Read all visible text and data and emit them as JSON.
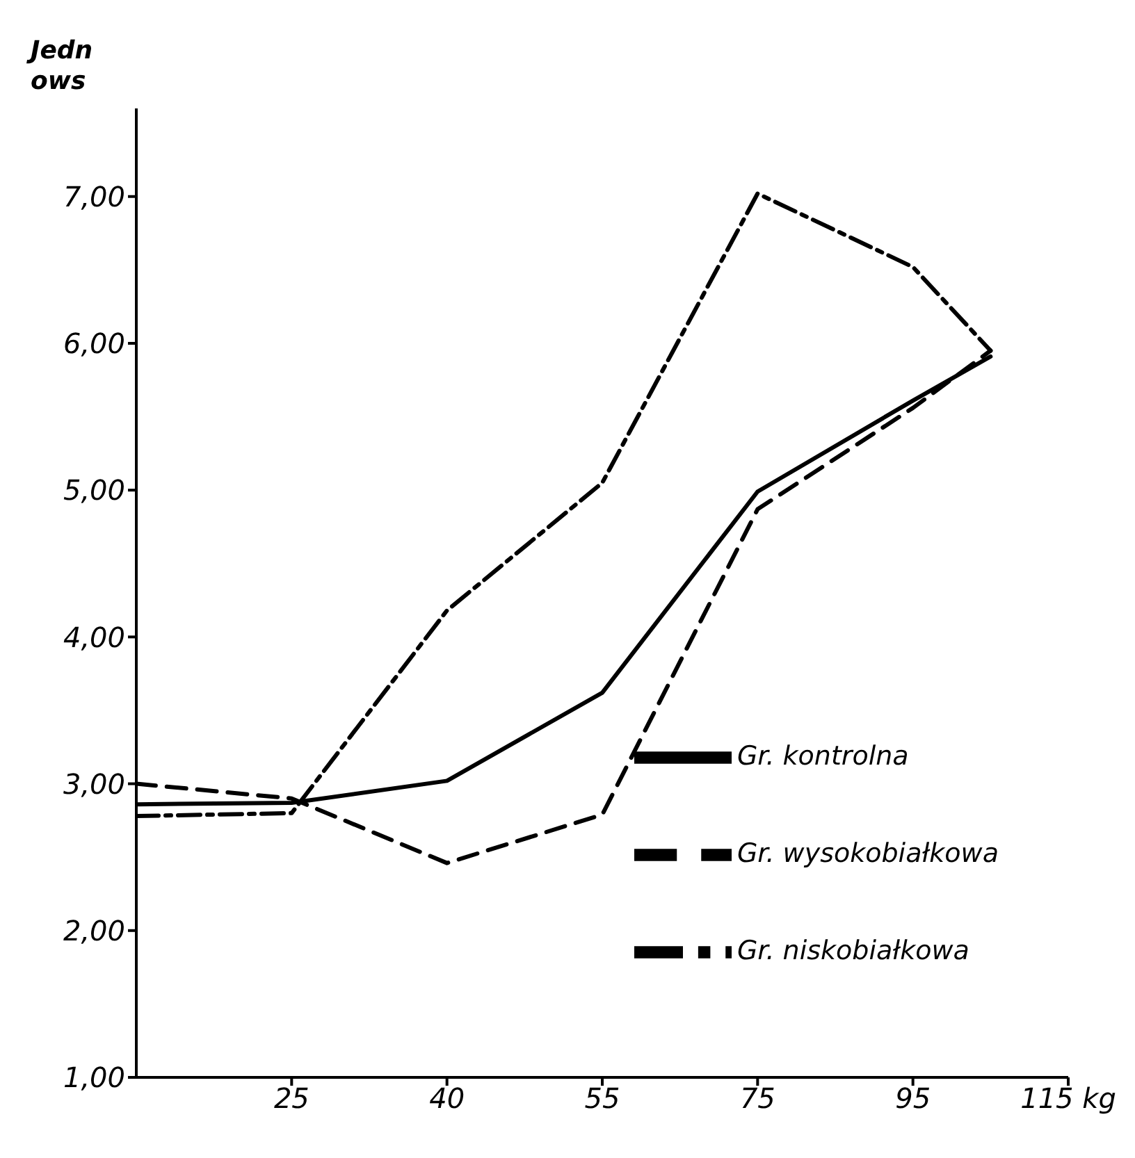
{
  "chart_data": {
    "type": "line",
    "ylabel": "Jedn ows",
    "categories": [
      null,
      null,
      "25",
      null,
      "40",
      null,
      "55",
      null,
      "75",
      null,
      "95",
      null,
      "115 kg"
    ],
    "ylim": [
      1,
      7.6
    ],
    "yticks": [
      {
        "value": 1,
        "label": "1,00"
      },
      {
        "value": 2,
        "label": "2,00"
      },
      {
        "value": 3,
        "label": "3,00"
      },
      {
        "value": 4,
        "label": "4,00"
      },
      {
        "value": 5,
        "label": "5,00"
      },
      {
        "value": 6,
        "label": "6,00"
      },
      {
        "value": 7,
        "label": "7,00"
      }
    ],
    "grid": false,
    "legend": "bottom right",
    "marker": "none",
    "series": [
      {
        "name": "Gr. kontrolna",
        "color": "#000000",
        "line_style": "solid",
        "values": [
          2.86,
          null,
          2.87,
          null,
          3.02,
          null,
          3.62,
          null,
          4.99,
          null,
          5.61,
          5.91,
          null
        ]
      },
      {
        "name": "Gr. wysokobiałkowa",
        "color": "#000000",
        "line_style": "dashed",
        "values": [
          3.0,
          null,
          2.9,
          null,
          2.46,
          null,
          2.79,
          null,
          4.87,
          null,
          5.56,
          5.95,
          null
        ]
      },
      {
        "name": "Gr. niskobiałkowa",
        "color": "#000000",
        "line_style": "dashdot",
        "values": [
          2.78,
          null,
          2.8,
          null,
          4.18,
          null,
          5.05,
          null,
          7.02,
          null,
          6.52,
          5.95,
          null
        ]
      }
    ]
  }
}
